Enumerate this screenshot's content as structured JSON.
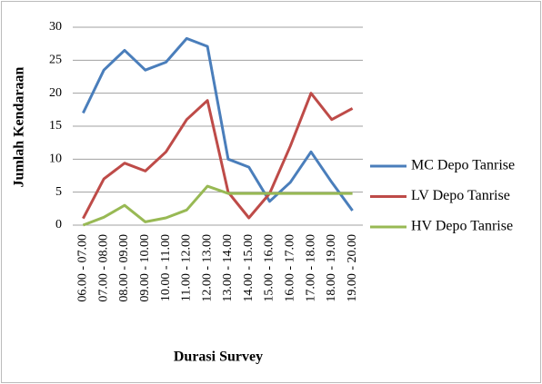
{
  "chart_data": {
    "type": "line",
    "ylabel": "Jumlah Kendaraan",
    "xlabel": "Durasi Survey",
    "categories": [
      "06.00 - 07.00",
      "07.00 - 08.00",
      "08.00 - 09.00",
      "09.00 - 10.00",
      "10.00 - 11.00",
      "11.00 - 12.00",
      "12.00 - 13.00",
      "13.00 - 14.00",
      "14.00 - 15.00",
      "15.00 - 16.00",
      "16.00 - 17.00",
      "17.00 - 18.00",
      "18.00 - 19.00",
      "19.00 - 20.00"
    ],
    "series": [
      {
        "name": "MC Depo Tanrise",
        "color": "#4a7ebb",
        "values": [
          17,
          23.5,
          26.5,
          23.5,
          24.7,
          28.3,
          27.1,
          10,
          8.8,
          3.6,
          6.5,
          11.1,
          6.5,
          2.2
        ]
      },
      {
        "name": "LV Depo Tanrise",
        "color": "#be4b48",
        "values": [
          1,
          7,
          9.4,
          8.2,
          11.1,
          16,
          18.9,
          5,
          1.1,
          4.8,
          12,
          20,
          16,
          17.7
        ]
      },
      {
        "name": "HV Depo Tanrise",
        "color": "#98b954",
        "values": [
          0,
          1.2,
          3,
          0.5,
          1.1,
          2.3,
          5.9,
          4.8,
          4.8,
          4.8,
          4.8,
          4.8,
          4.8,
          4.8
        ]
      }
    ],
    "ylim": [
      0,
      30
    ],
    "yticks": [
      0,
      5,
      10,
      15,
      20,
      25,
      30
    ],
    "grid": true,
    "legend": "right"
  }
}
